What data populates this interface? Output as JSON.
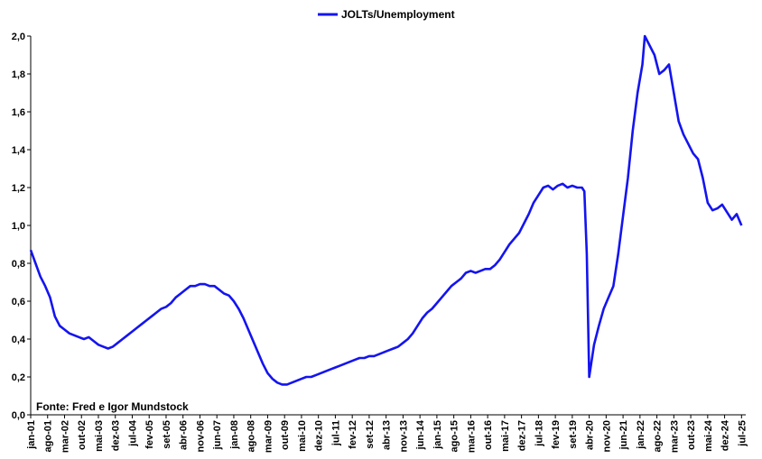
{
  "chart_data": {
    "type": "line",
    "legend_position": "top-center",
    "grid": false,
    "ylim": [
      0,
      2.0
    ],
    "y_ticks": [
      "0,0",
      "0,2",
      "0,4",
      "0,6",
      "0,8",
      "1,0",
      "1,2",
      "1,4",
      "1,6",
      "1,8",
      "2,0"
    ],
    "x_ticks": [
      "jan-01",
      "ago-01",
      "mar-02",
      "out-02",
      "mai-03",
      "dez-03",
      "jul-04",
      "fev-05",
      "set-05",
      "abr-06",
      "nov-06",
      "jun-07",
      "jan-08",
      "ago-08",
      "mar-09",
      "out-09",
      "mai-10",
      "dez-10",
      "jul-11",
      "fev-12",
      "set-12",
      "abr-13",
      "nov-13",
      "jun-14",
      "jan-15",
      "ago-15",
      "mar-16",
      "out-16",
      "mai-17",
      "dez-17",
      "jul-18",
      "fev-19",
      "set-19",
      "abr-20",
      "nov-20",
      "jun-21",
      "jan-22",
      "ago-22",
      "mar-23",
      "out-23",
      "mai-24",
      "dez-24",
      "jul-25"
    ],
    "series": [
      {
        "name": "JOLTs/Unemployment",
        "color": "#1414f0",
        "points": [
          [
            "2001-01",
            0.87
          ],
          [
            "2001-03",
            0.8
          ],
          [
            "2001-05",
            0.73
          ],
          [
            "2001-07",
            0.68
          ],
          [
            "2001-09",
            0.62
          ],
          [
            "2001-11",
            0.52
          ],
          [
            "2002-01",
            0.47
          ],
          [
            "2002-03",
            0.45
          ],
          [
            "2002-05",
            0.43
          ],
          [
            "2002-07",
            0.42
          ],
          [
            "2002-09",
            0.41
          ],
          [
            "2002-11",
            0.4
          ],
          [
            "2003-01",
            0.41
          ],
          [
            "2003-03",
            0.39
          ],
          [
            "2003-05",
            0.37
          ],
          [
            "2003-07",
            0.36
          ],
          [
            "2003-09",
            0.35
          ],
          [
            "2003-11",
            0.36
          ],
          [
            "2004-01",
            0.38
          ],
          [
            "2004-03",
            0.4
          ],
          [
            "2004-05",
            0.42
          ],
          [
            "2004-07",
            0.44
          ],
          [
            "2004-09",
            0.46
          ],
          [
            "2004-11",
            0.48
          ],
          [
            "2005-01",
            0.5
          ],
          [
            "2005-03",
            0.52
          ],
          [
            "2005-05",
            0.54
          ],
          [
            "2005-07",
            0.56
          ],
          [
            "2005-09",
            0.57
          ],
          [
            "2005-11",
            0.59
          ],
          [
            "2006-01",
            0.62
          ],
          [
            "2006-03",
            0.64
          ],
          [
            "2006-05",
            0.66
          ],
          [
            "2006-07",
            0.68
          ],
          [
            "2006-09",
            0.68
          ],
          [
            "2006-11",
            0.69
          ],
          [
            "2007-01",
            0.69
          ],
          [
            "2007-03",
            0.68
          ],
          [
            "2007-05",
            0.68
          ],
          [
            "2007-07",
            0.66
          ],
          [
            "2007-09",
            0.64
          ],
          [
            "2007-11",
            0.63
          ],
          [
            "2008-01",
            0.6
          ],
          [
            "2008-03",
            0.56
          ],
          [
            "2008-05",
            0.51
          ],
          [
            "2008-07",
            0.45
          ],
          [
            "2008-09",
            0.39
          ],
          [
            "2008-11",
            0.33
          ],
          [
            "2009-01",
            0.27
          ],
          [
            "2009-03",
            0.22
          ],
          [
            "2009-05",
            0.19
          ],
          [
            "2009-07",
            0.17
          ],
          [
            "2009-09",
            0.16
          ],
          [
            "2009-11",
            0.16
          ],
          [
            "2010-01",
            0.17
          ],
          [
            "2010-03",
            0.18
          ],
          [
            "2010-05",
            0.19
          ],
          [
            "2010-07",
            0.2
          ],
          [
            "2010-09",
            0.2
          ],
          [
            "2010-11",
            0.21
          ],
          [
            "2011-01",
            0.22
          ],
          [
            "2011-03",
            0.23
          ],
          [
            "2011-05",
            0.24
          ],
          [
            "2011-07",
            0.25
          ],
          [
            "2011-09",
            0.26
          ],
          [
            "2011-11",
            0.27
          ],
          [
            "2012-01",
            0.28
          ],
          [
            "2012-03",
            0.29
          ],
          [
            "2012-05",
            0.3
          ],
          [
            "2012-07",
            0.3
          ],
          [
            "2012-09",
            0.31
          ],
          [
            "2012-11",
            0.31
          ],
          [
            "2013-01",
            0.32
          ],
          [
            "2013-03",
            0.33
          ],
          [
            "2013-05",
            0.34
          ],
          [
            "2013-07",
            0.35
          ],
          [
            "2013-09",
            0.36
          ],
          [
            "2013-11",
            0.38
          ],
          [
            "2014-01",
            0.4
          ],
          [
            "2014-03",
            0.43
          ],
          [
            "2014-05",
            0.47
          ],
          [
            "2014-07",
            0.51
          ],
          [
            "2014-09",
            0.54
          ],
          [
            "2014-11",
            0.56
          ],
          [
            "2015-01",
            0.59
          ],
          [
            "2015-03",
            0.62
          ],
          [
            "2015-05",
            0.65
          ],
          [
            "2015-07",
            0.68
          ],
          [
            "2015-09",
            0.7
          ],
          [
            "2015-11",
            0.72
          ],
          [
            "2016-01",
            0.75
          ],
          [
            "2016-03",
            0.76
          ],
          [
            "2016-05",
            0.75
          ],
          [
            "2016-07",
            0.76
          ],
          [
            "2016-09",
            0.77
          ],
          [
            "2016-11",
            0.77
          ],
          [
            "2017-01",
            0.79
          ],
          [
            "2017-03",
            0.82
          ],
          [
            "2017-05",
            0.86
          ],
          [
            "2017-07",
            0.9
          ],
          [
            "2017-09",
            0.93
          ],
          [
            "2017-11",
            0.96
          ],
          [
            "2018-01",
            1.01
          ],
          [
            "2018-03",
            1.06
          ],
          [
            "2018-05",
            1.12
          ],
          [
            "2018-07",
            1.16
          ],
          [
            "2018-09",
            1.2
          ],
          [
            "2018-11",
            1.21
          ],
          [
            "2019-01",
            1.19
          ],
          [
            "2019-03",
            1.21
          ],
          [
            "2019-05",
            1.22
          ],
          [
            "2019-07",
            1.2
          ],
          [
            "2019-09",
            1.21
          ],
          [
            "2019-11",
            1.2
          ],
          [
            "2020-01",
            1.2
          ],
          [
            "2020-02",
            1.18
          ],
          [
            "2020-03",
            0.85
          ],
          [
            "2020-04",
            0.2
          ],
          [
            "2020-06",
            0.37
          ],
          [
            "2020-08",
            0.47
          ],
          [
            "2020-10",
            0.56
          ],
          [
            "2020-12",
            0.62
          ],
          [
            "2021-02",
            0.68
          ],
          [
            "2021-04",
            0.85
          ],
          [
            "2021-06",
            1.05
          ],
          [
            "2021-08",
            1.25
          ],
          [
            "2021-10",
            1.5
          ],
          [
            "2021-12",
            1.7
          ],
          [
            "2022-02",
            1.85
          ],
          [
            "2022-03",
            2.0
          ],
          [
            "2022-05",
            1.95
          ],
          [
            "2022-07",
            1.9
          ],
          [
            "2022-09",
            1.8
          ],
          [
            "2022-11",
            1.82
          ],
          [
            "2023-01",
            1.85
          ],
          [
            "2023-03",
            1.7
          ],
          [
            "2023-05",
            1.55
          ],
          [
            "2023-07",
            1.48
          ],
          [
            "2023-09",
            1.43
          ],
          [
            "2023-11",
            1.38
          ],
          [
            "2024-01",
            1.35
          ],
          [
            "2024-03",
            1.25
          ],
          [
            "2024-05",
            1.12
          ],
          [
            "2024-07",
            1.08
          ],
          [
            "2024-09",
            1.09
          ],
          [
            "2024-11",
            1.11
          ],
          [
            "2025-01",
            1.07
          ],
          [
            "2025-03",
            1.03
          ],
          [
            "2025-05",
            1.06
          ],
          [
            "2025-07",
            1.0
          ]
        ]
      }
    ]
  },
  "source": "Fonte: Fred e Igor Mundstock"
}
